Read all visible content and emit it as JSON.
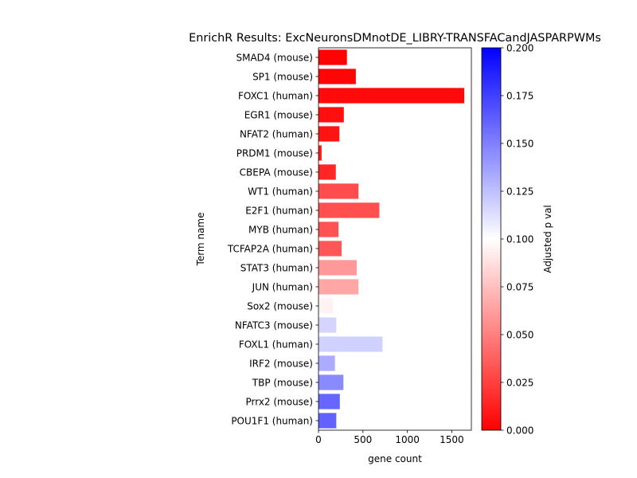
{
  "chart_data": {
    "type": "bar",
    "orientation": "horizontal",
    "title": "EnrichR Results: ExcNeuronsDMnotDE_LIBRY-TRANSFACandJASPARPWMs",
    "xlabel": "gene count",
    "ylabel": "Term name",
    "xlim": [
      0,
      1720
    ],
    "xticks": [
      0,
      500,
      1000,
      1500
    ],
    "grid": false,
    "categories": [
      "SMAD4 (mouse)",
      "SP1 (mouse)",
      "FOXC1 (human)",
      "EGR1 (mouse)",
      "NFAT2 (human)",
      "PRDM1 (mouse)",
      "CBEPA (mouse)",
      "WT1 (human)",
      "E2F1 (human)",
      "MYB (human)",
      "TCFAP2A (human)",
      "STAT3 (human)",
      "JUN (human)",
      "Sox2 (mouse)",
      "NFATC3 (mouse)",
      "FOXL1 (human)",
      "IRF2 (mouse)",
      "TBP (mouse)",
      "Prrx2 (mouse)",
      "POU1F1 (human)"
    ],
    "values": [
      320,
      420,
      1640,
      285,
      235,
      35,
      195,
      450,
      685,
      225,
      260,
      430,
      450,
      165,
      200,
      720,
      185,
      280,
      240,
      200
    ],
    "adjusted_p": [
      0.001,
      0.002,
      0.004,
      0.006,
      0.008,
      0.01,
      0.015,
      0.03,
      0.031,
      0.032,
      0.034,
      0.06,
      0.065,
      0.095,
      0.117,
      0.118,
      0.133,
      0.146,
      0.16,
      0.162
    ],
    "colorbar": {
      "label": "Adjusted p val",
      "range": [
        0,
        0.2
      ],
      "ticks": [
        "0.000",
        "0.025",
        "0.050",
        "0.075",
        "0.100",
        "0.125",
        "0.150",
        "0.175",
        "0.200"
      ],
      "colormap": "bwr",
      "colors": [
        "#ff0000",
        "#ffffff",
        "#0000ff"
      ]
    }
  }
}
